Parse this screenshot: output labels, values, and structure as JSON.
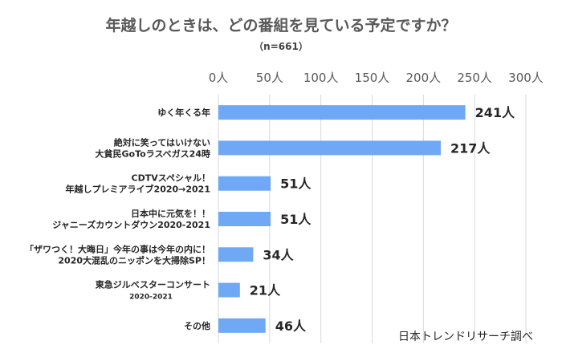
{
  "chart_data": {
    "type": "bar",
    "orientation": "horizontal",
    "title": "年越しのときは、どの番組を見ている予定ですか？",
    "subtitle": "（n=661）",
    "categories": [
      [
        "ゆく年くる年"
      ],
      [
        "絶対に笑ってはいけない",
        "大貧民GoToラスベガス24時"
      ],
      [
        "CDTVスペシャル！",
        "年越しプレミアライブ2020→2021"
      ],
      [
        "日本中に元気を！！",
        "ジャニーズカウントダウン2020-2021"
      ],
      [
        "「ザワつく！大晦日」今年の事は今年の内に！",
        "2020大混乱のニッポンを大掃除SP！"
      ],
      [
        "東急ジルベスターコンサート",
        "2020-2021"
      ],
      [
        "その他"
      ]
    ],
    "values": [
      241,
      217,
      51,
      51,
      34,
      21,
      46
    ],
    "value_labels": [
      "241人",
      "217人",
      "51人",
      "51人",
      "34人",
      "21人",
      "46人"
    ],
    "x_ticks": [
      "0人",
      "50人",
      "100人",
      "150人",
      "200人",
      "250人",
      "300人"
    ],
    "xlim": [
      0,
      300
    ],
    "grid": true,
    "legend": "none",
    "bar_color": "#6fa8f5",
    "source": "日本トレンドリサーチ調べ"
  }
}
